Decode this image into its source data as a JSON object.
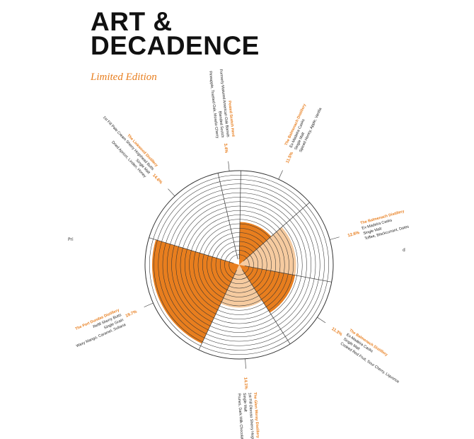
{
  "header": {
    "title_line1": "ART &",
    "title_line2": "DECADENCE",
    "subtitle": "Limited Edition"
  },
  "colors": {
    "accent": "#e87e1e",
    "light": "#f6cba0",
    "ring": "#333333",
    "text": "#222222"
  },
  "edge_fragments": {
    "left": "Pri",
    "right": "d"
  },
  "chart_data": {
    "type": "radial-bar",
    "title": "",
    "segments": [
      {
        "name": "Peated Scotch Herd",
        "lines": [
          "Formerly Matured American Oak Barrels",
          "Blended Scotch",
          "Pineapple, Toasted Oak, Morello Cherry"
        ],
        "value_label": "3.4%",
        "value": 3.4,
        "fill_fraction": 0.0,
        "style": "none"
      },
      {
        "name": "The Balmenach Distillery",
        "lines": [
          "Ex-Madeira Casks",
          "Single Malt",
          "Spiced Honey, Apple, Vanilla"
        ],
        "value_label": "11.5%",
        "value": 11.5,
        "fill_fraction": 0.42,
        "style": "dark"
      },
      {
        "name": "The Balmenach Distillery",
        "lines": [
          "Ex-Madeira Casks",
          "Single Malt",
          "Toffee, Blackcurrant, Dates"
        ],
        "value_label": "12.6%",
        "value": 12.6,
        "fill_fraction": 0.58,
        "style": "light"
      },
      {
        "name": "The Balmenach Distillery",
        "lines": [
          "Ex-Madeira Casks",
          "Single Malt",
          "Cooked Red Fruit, Sour Cherry, Liquorice"
        ],
        "value_label": "11.3%",
        "value": 11.3,
        "fill_fraction": 0.58,
        "style": "dark"
      },
      {
        "name": "The Glen Moray Distillery",
        "lines": [
          "1st Fill Oloroso Sherry Hogshead Butts",
          "Single Malt",
          "Prunes, Dark Milk Chocolate, Biscuits"
        ],
        "value_label": "14.1%",
        "value": 14.1,
        "fill_fraction": 0.42,
        "style": "light"
      },
      {
        "name": "The Port Dundas Distillery",
        "lines": [
          "Refill Sherry Butts",
          "Single Grain",
          "Waxy Mango, Caramel, Sultana"
        ],
        "value_label": "19.7%",
        "value": 19.7,
        "fill_fraction": 0.92,
        "style": "dark"
      },
      {
        "name": "The Linkwood Distillery",
        "lines": [
          "1st Fill Pale Cream Sherry Hogshead Butts",
          "Single Malt",
          "Dried Apricot, Linden, Honey"
        ],
        "value_label": "14.6%",
        "value": 14.6,
        "fill_fraction": 0.0,
        "style": "none"
      }
    ]
  }
}
